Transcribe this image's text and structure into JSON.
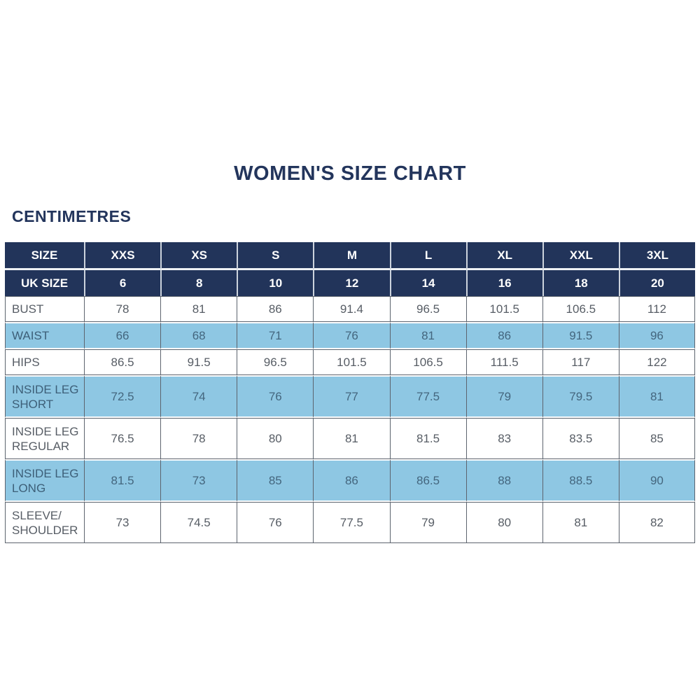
{
  "title": "WOMEN'S SIZE CHART",
  "units_label": "CENTIMETRES",
  "colors": {
    "navy": "#22345a",
    "light_blue": "#8ec7e3",
    "heading_text": "#23355c",
    "border_dark": "#5d646e"
  },
  "chart_data": {
    "type": "table",
    "title": "WOMEN'S SIZE CHART",
    "units": "CENTIMETRES",
    "columns": [
      "SIZE",
      "XXS",
      "XS",
      "S",
      "M",
      "L",
      "XL",
      "XXL",
      "3XL"
    ],
    "uk_size": {
      "label": "UK SIZE",
      "values": [
        "6",
        "8",
        "10",
        "12",
        "14",
        "16",
        "18",
        "20"
      ]
    },
    "rows": [
      {
        "label": "BUST",
        "shade": "white",
        "values": [
          "78",
          "81",
          "86",
          "91.4",
          "96.5",
          "101.5",
          "106.5",
          "112"
        ]
      },
      {
        "label": "WAIST",
        "shade": "blue",
        "values": [
          "66",
          "68",
          "71",
          "76",
          "81",
          "86",
          "91.5",
          "96"
        ]
      },
      {
        "label": "HIPS",
        "shade": "white",
        "values": [
          "86.5",
          "91.5",
          "96.5",
          "101.5",
          "106.5",
          "111.5",
          "117",
          "122"
        ]
      },
      {
        "label": "INSIDE LEG SHORT",
        "shade": "blue",
        "values": [
          "72.5",
          "74",
          "76",
          "77",
          "77.5",
          "79",
          "79.5",
          "81"
        ]
      },
      {
        "label": "INSIDE LEG REGULAR",
        "shade": "white",
        "values": [
          "76.5",
          "78",
          "80",
          "81",
          "81.5",
          "83",
          "83.5",
          "85"
        ]
      },
      {
        "label": "INSIDE LEG LONG",
        "shade": "blue",
        "values": [
          "81.5",
          "73",
          "85",
          "86",
          "86.5",
          "88",
          "88.5",
          "90"
        ]
      },
      {
        "label": "SLEEVE/ SHOULDER",
        "shade": "white",
        "values": [
          "73",
          "74.5",
          "76",
          "77.5",
          "79",
          "80",
          "81",
          "82"
        ]
      }
    ]
  }
}
